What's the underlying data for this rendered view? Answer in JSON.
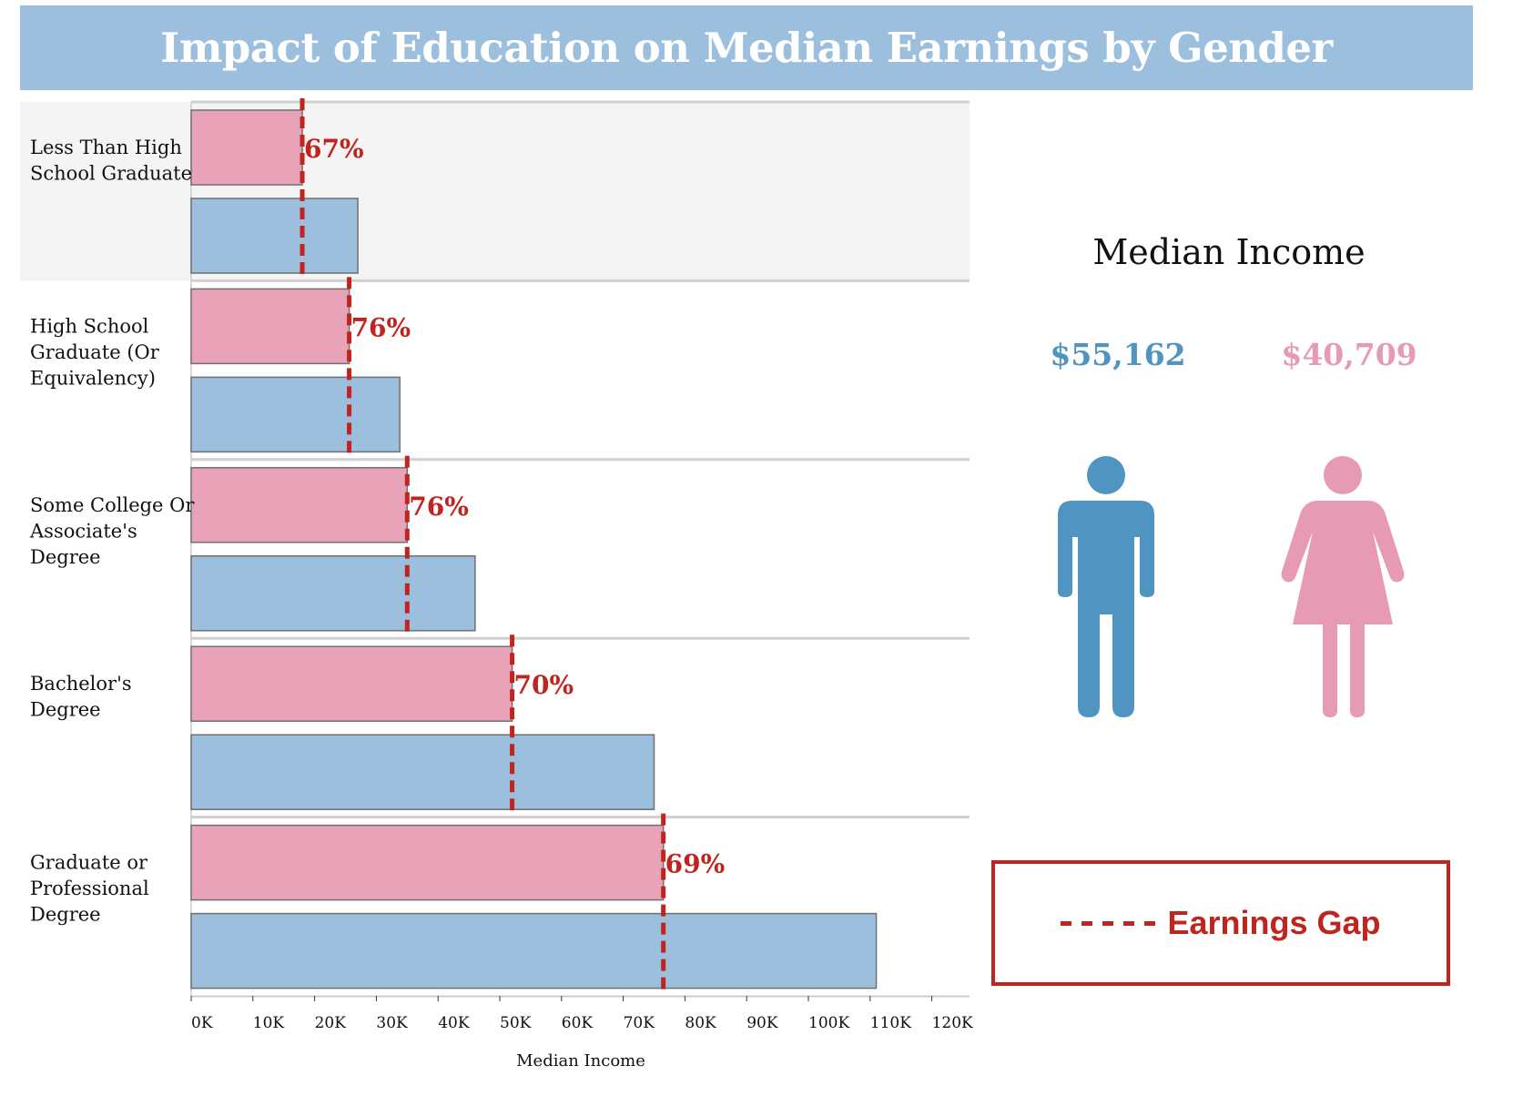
{
  "title": "Impact of Education on Median Earnings by Gender",
  "colors": {
    "female": "#e9a3b8",
    "male": "#9dbfde",
    "gap": "#c0241f",
    "male_icon": "#5094c2",
    "female_icon": "#e69ab4"
  },
  "chart_data": {
    "type": "bar",
    "orientation": "horizontal",
    "xlabel": "Median Income",
    "xlim": [
      0,
      120000
    ],
    "x_ticks": [
      "0K",
      "10K",
      "20K",
      "30K",
      "40K",
      "50K",
      "60K",
      "70K",
      "80K",
      "90K",
      "100K",
      "110K",
      "120K"
    ],
    "categories": [
      [
        "Less Than High",
        "School Graduate"
      ],
      [
        "High School",
        "Graduate (Or",
        "Equivalency)"
      ],
      [
        "Some College Or",
        "Associate's",
        "Degree"
      ],
      [
        "Bachelor's",
        "Degree"
      ],
      [
        "Graduate or",
        "Professional",
        "Degree"
      ]
    ],
    "series": [
      {
        "key": "female",
        "values": [
          18000,
          25600,
          35000,
          52000,
          76500
        ]
      },
      {
        "key": "male",
        "values": [
          27000,
          33800,
          46000,
          75000,
          111000
        ]
      }
    ],
    "gap_labels": [
      "67%",
      "76%",
      "76%",
      "70%",
      "69%"
    ],
    "highlighted_category": 0
  },
  "panel": {
    "title": "Median Income",
    "male_value": "$55,162",
    "female_value": "$40,709",
    "male_icon": "male-person-icon",
    "female_icon": "female-person-icon"
  },
  "legend": {
    "label": "Earnings Gap"
  }
}
